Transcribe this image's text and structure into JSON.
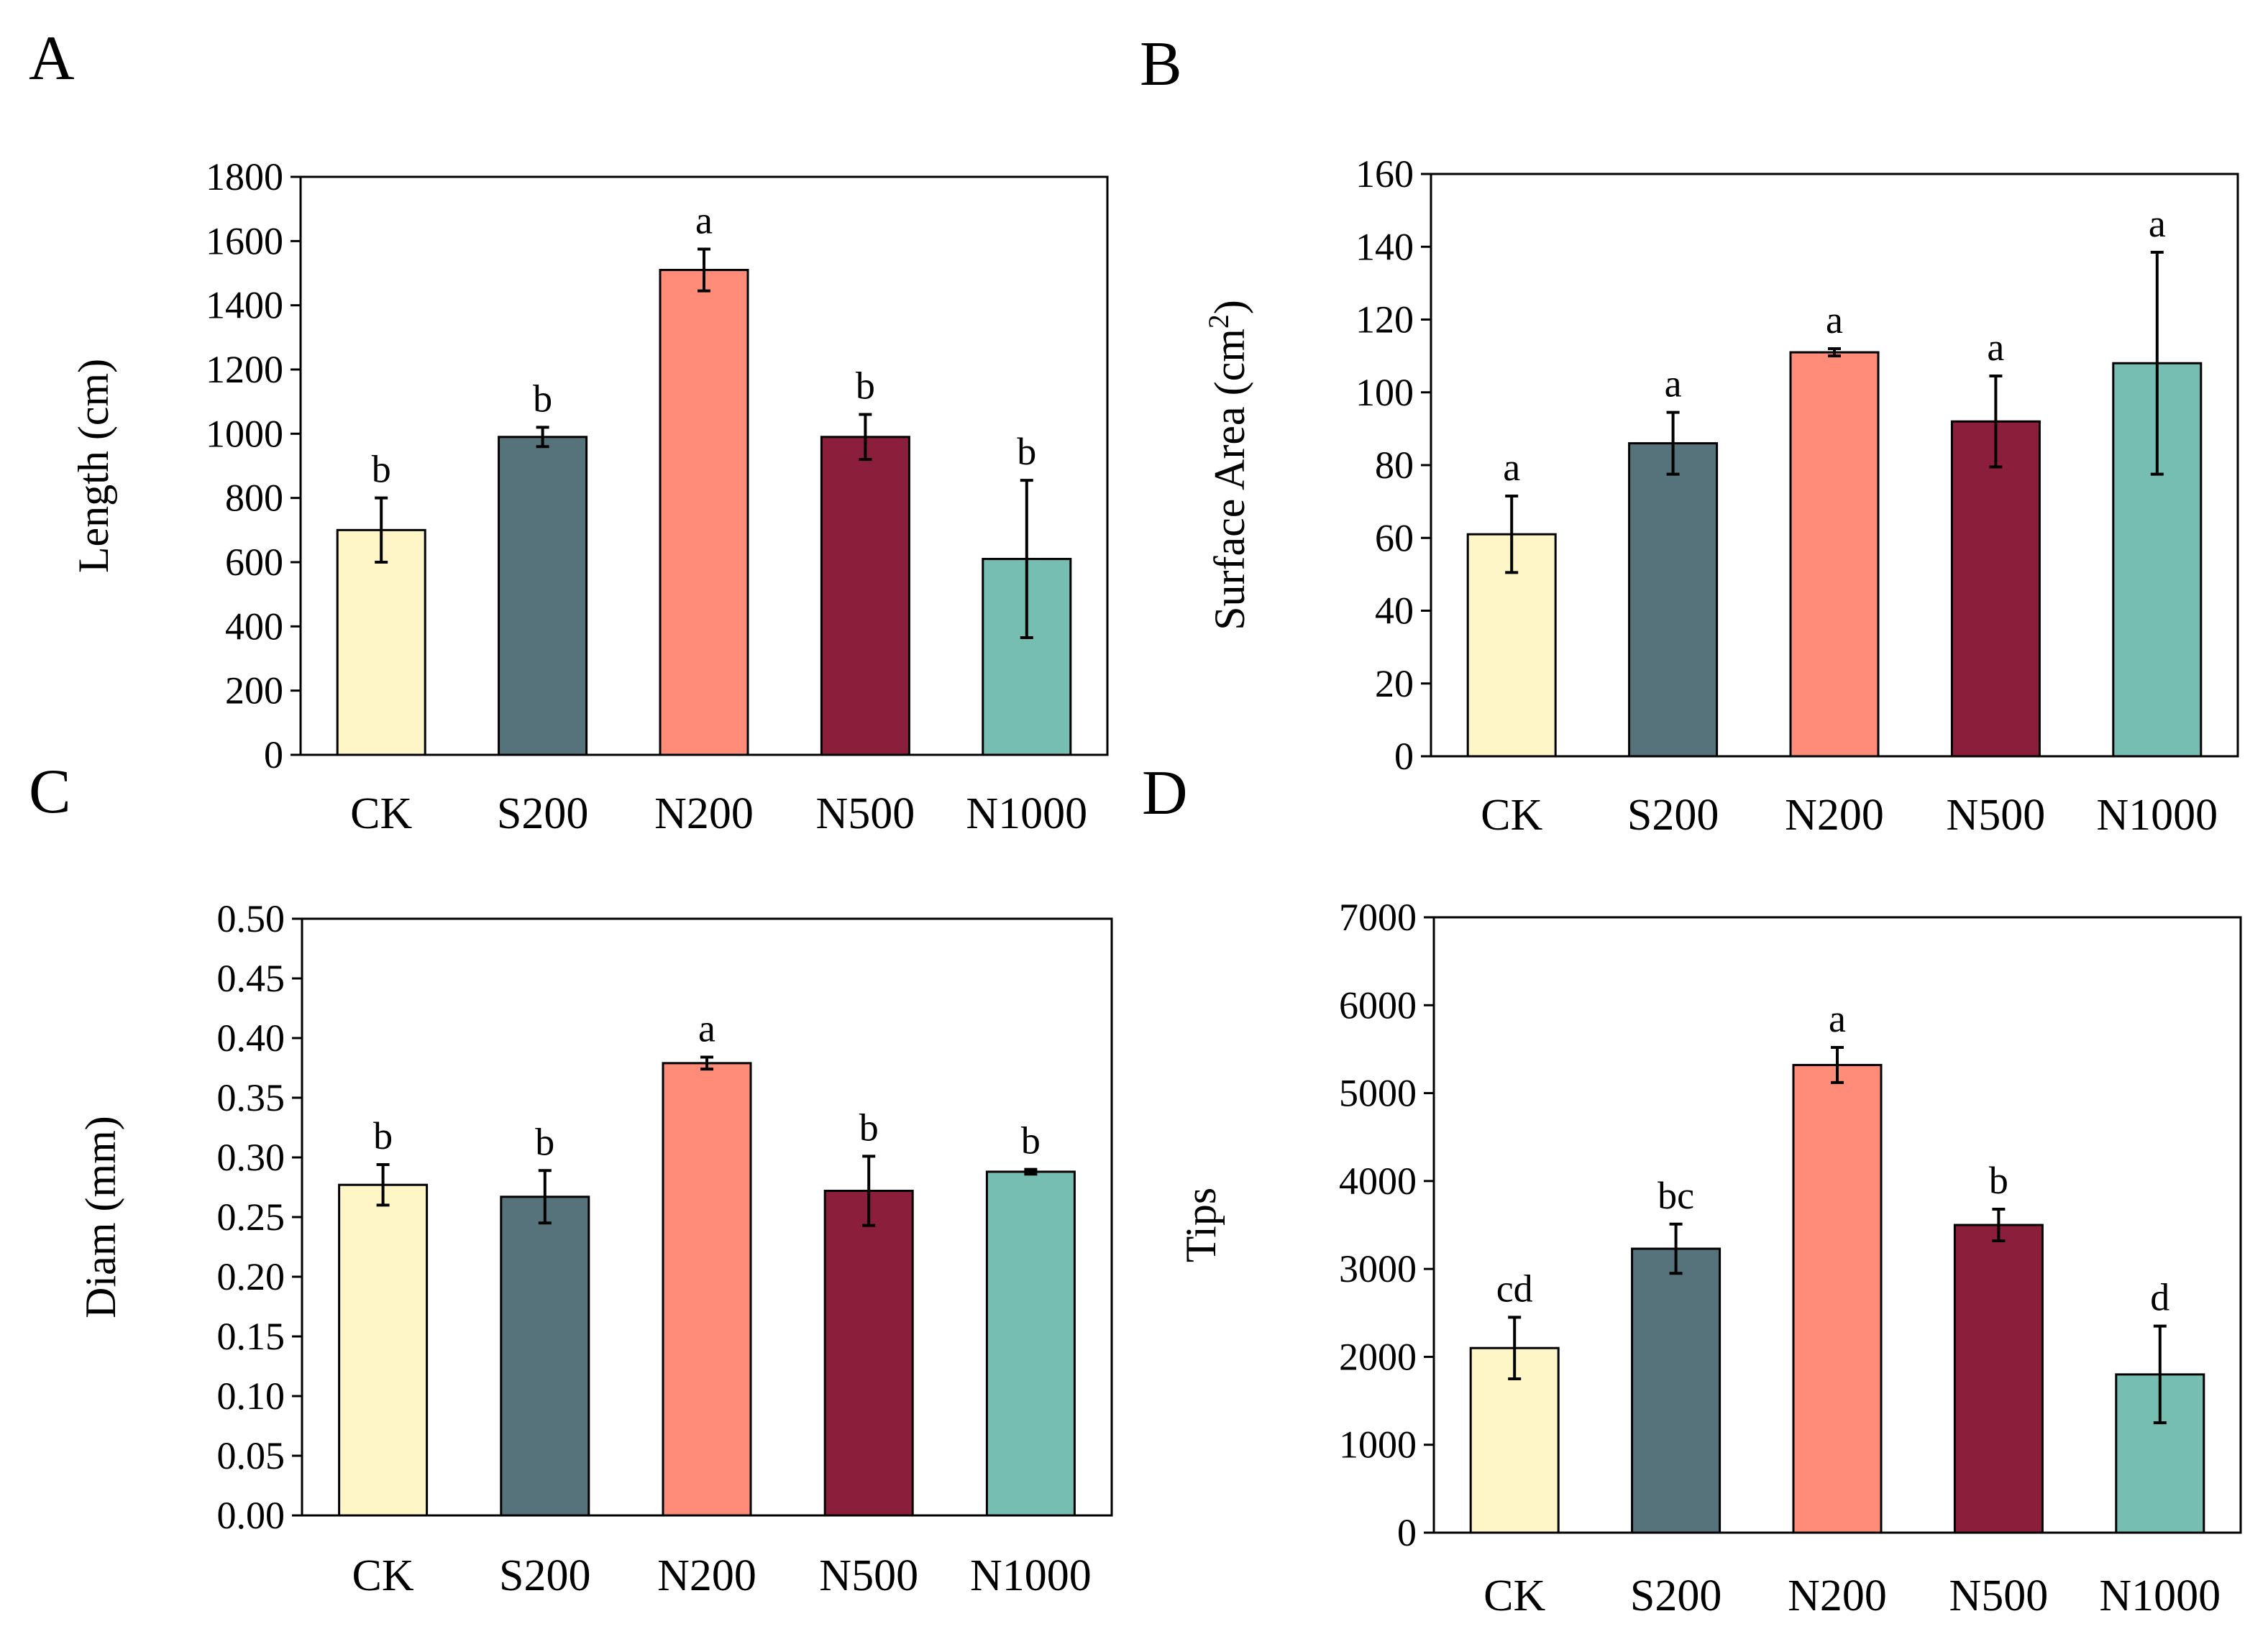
{
  "colors": [
    "#FFF6C8",
    "#56737B",
    "#FE8C79",
    "#8B1F3B",
    "#75BEB1"
  ],
  "chart_data": [
    {
      "panel": "A",
      "type": "bar",
      "categories": [
        "CK",
        "S200",
        "N200",
        "N500",
        "N1000"
      ],
      "values": [
        700,
        990,
        1510,
        990,
        610
      ],
      "errors": [
        100,
        30,
        65,
        70,
        245
      ],
      "letters": [
        "b",
        "b",
        "a",
        "b",
        "b"
      ],
      "ylabel": "Length (cm)",
      "ylim": [
        0,
        1800
      ],
      "yticks": [
        "0",
        "200",
        "400",
        "600",
        "800",
        "1000",
        "1200",
        "1400",
        "1600",
        "1800"
      ]
    },
    {
      "panel": "B",
      "type": "bar",
      "categories": [
        "CK",
        "S200",
        "N200",
        "N500",
        "N1000"
      ],
      "values": [
        61,
        86,
        111,
        92,
        108
      ],
      "errors": [
        10.5,
        8.5,
        1,
        12.5,
        30.5
      ],
      "letters": [
        "a",
        "a",
        "a",
        "a",
        "a"
      ],
      "ylabel": "Surface Area (cm",
      "ylabel_sup": "2",
      "ylabel_tail": ")",
      "ylim": [
        0,
        160
      ],
      "yticks": [
        "0",
        "20",
        "40",
        "60",
        "80",
        "100",
        "120",
        "140",
        "160"
      ]
    },
    {
      "panel": "C",
      "type": "bar",
      "categories": [
        "CK",
        "S200",
        "N200",
        "N500",
        "N1000"
      ],
      "values": [
        0.277,
        0.267,
        0.379,
        0.272,
        0.288
      ],
      "errors": [
        0.017,
        0.022,
        0.005,
        0.029,
        0.002
      ],
      "letters": [
        "b",
        "b",
        "a",
        "b",
        "b"
      ],
      "ylabel": "Diam (mm)",
      "ylim": [
        0,
        0.5
      ],
      "yticks": [
        "0.00",
        "0.05",
        "0.10",
        "0.15",
        "0.20",
        "0.25",
        "0.30",
        "0.35",
        "0.40",
        "0.45",
        "0.50"
      ]
    },
    {
      "panel": "D",
      "type": "bar",
      "categories": [
        "CK",
        "S200",
        "N200",
        "N500",
        "N1000"
      ],
      "values": [
        2100,
        3230,
        5320,
        3500,
        1800
      ],
      "errors": [
        350,
        280,
        200,
        180,
        550
      ],
      "letters": [
        "cd",
        "bc",
        "a",
        "b",
        "d"
      ],
      "ylabel": "Tips",
      "ylim": [
        0,
        7000
      ],
      "yticks": [
        "0",
        "1000",
        "2000",
        "3000",
        "4000",
        "5000",
        "6000",
        "7000"
      ]
    }
  ]
}
